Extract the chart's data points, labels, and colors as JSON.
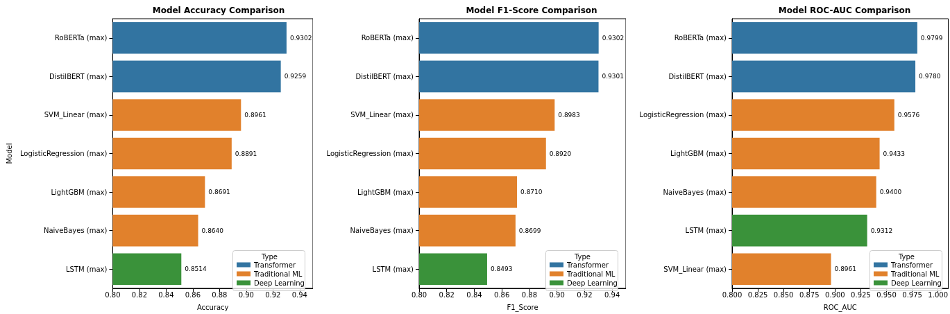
{
  "chart_data": [
    {
      "type": "bar",
      "orientation": "horizontal",
      "title": "Model Accuracy Comparison",
      "xlabel": "Accuracy",
      "ylabel": "Model",
      "categories": [
        "RoBERTa (max)",
        "DistilBERT (max)",
        "SVM_Linear (max)",
        "LogisticRegression (max)",
        "LightGBM (max)",
        "NaiveBayes (max)",
        "LSTM (max)"
      ],
      "series": [
        {
          "name": "Transformer",
          "color": "#3274a1",
          "values": [
            0.9302,
            0.9259,
            null,
            null,
            null,
            null,
            null
          ],
          "value_labels": [
            "0.9302",
            "0.9259",
            null,
            null,
            null,
            null,
            null
          ]
        },
        {
          "name": "Traditional ML",
          "color": "#e1812c",
          "values": [
            null,
            null,
            0.8961,
            0.8891,
            0.8691,
            0.864,
            null
          ],
          "value_labels": [
            null,
            null,
            "0.8961",
            "0.8891",
            "0.8691",
            "0.8640",
            null
          ]
        },
        {
          "name": "Deep Learning",
          "color": "#3a923a",
          "values": [
            null,
            null,
            null,
            null,
            null,
            null,
            0.8514
          ],
          "value_labels": [
            null,
            null,
            null,
            null,
            null,
            null,
            "0.8514"
          ]
        }
      ],
      "xlim": [
        0.8,
        0.95
      ],
      "xticks": [
        "0.80",
        "0.82",
        "0.84",
        "0.86",
        "0.88",
        "0.90",
        "0.92",
        "0.94"
      ],
      "legend": "bottom right",
      "legend_title": "Type",
      "grid": false
    },
    {
      "type": "bar",
      "orientation": "horizontal",
      "title": "Model F1-Score Comparison",
      "xlabel": "F1_Score",
      "categories": [
        "RoBERTa (max)",
        "DistilBERT (max)",
        "SVM_Linear (max)",
        "LogisticRegression (max)",
        "LightGBM (max)",
        "NaiveBayes (max)",
        "LSTM (max)"
      ],
      "series": [
        {
          "name": "Transformer",
          "color": "#3274a1",
          "values": [
            0.9302,
            0.9301,
            null,
            null,
            null,
            null,
            null
          ],
          "value_labels": [
            "0.9302",
            "0.9301",
            null,
            null,
            null,
            null,
            null
          ]
        },
        {
          "name": "Traditional ML",
          "color": "#e1812c",
          "values": [
            null,
            null,
            0.8983,
            0.892,
            0.871,
            0.8699,
            null
          ],
          "value_labels": [
            null,
            null,
            "0.8983",
            "0.8920",
            "0.8710",
            "0.8699",
            null
          ]
        },
        {
          "name": "Deep Learning",
          "color": "#3a923a",
          "values": [
            null,
            null,
            null,
            null,
            null,
            null,
            0.8493
          ],
          "value_labels": [
            null,
            null,
            null,
            null,
            null,
            null,
            "0.8493"
          ]
        }
      ],
      "xlim": [
        0.8,
        0.95
      ],
      "xticks": [
        "0.80",
        "0.82",
        "0.84",
        "0.86",
        "0.88",
        "0.90",
        "0.92",
        "0.94"
      ],
      "legend": "bottom right",
      "legend_title": "Type",
      "grid": false
    },
    {
      "type": "bar",
      "orientation": "horizontal",
      "title": "Model ROC-AUC Comparison",
      "xlabel": "ROC_AUC",
      "categories": [
        "RoBERTa (max)",
        "DistilBERT (max)",
        "LogisticRegression (max)",
        "LightGBM (max)",
        "NaiveBayes (max)",
        "LSTM (max)",
        "SVM_Linear (max)"
      ],
      "series": [
        {
          "name": "Transformer",
          "color": "#3274a1",
          "values": [
            0.9799,
            0.978,
            null,
            null,
            null,
            null,
            null
          ],
          "value_labels": [
            "0.9799",
            "0.9780",
            null,
            null,
            null,
            null,
            null
          ]
        },
        {
          "name": "Traditional ML",
          "color": "#e1812c",
          "values": [
            null,
            null,
            0.9576,
            0.9433,
            0.94,
            null,
            0.8961
          ],
          "value_labels": [
            null,
            null,
            "0.9576",
            "0.9433",
            "0.9400",
            null,
            "0.8961"
          ]
        },
        {
          "name": "Deep Learning",
          "color": "#3a923a",
          "values": [
            null,
            null,
            null,
            null,
            null,
            0.9312,
            null
          ],
          "value_labels": [
            null,
            null,
            null,
            null,
            null,
            "0.9312",
            null
          ]
        }
      ],
      "xlim": [
        0.8,
        1.01
      ],
      "xticks": [
        "0.800",
        "0.825",
        "0.850",
        "0.875",
        "0.900",
        "0.925",
        "0.950",
        "0.975",
        "1.000"
      ],
      "legend": "bottom right",
      "legend_title": "Type",
      "grid": false
    }
  ]
}
